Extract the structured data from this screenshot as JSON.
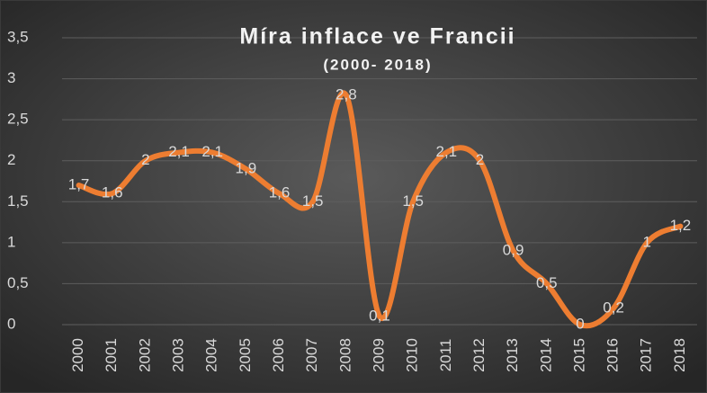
{
  "chart_data": {
    "type": "line",
    "title": "Míra inflace ve Francii",
    "subtitle": "(2000- 2018)",
    "categories": [
      "2000",
      "2001",
      "2002",
      "2003",
      "2004",
      "2005",
      "2006",
      "2007",
      "2008",
      "2009",
      "2010",
      "2011",
      "2012",
      "2013",
      "2014",
      "2015",
      "2016",
      "2017",
      "2018"
    ],
    "values": [
      1.7,
      1.6,
      2,
      2.1,
      2.1,
      1.9,
      1.6,
      1.5,
      2.8,
      0.1,
      1.5,
      2.1,
      2,
      0.9,
      0.5,
      0,
      0.2,
      1,
      1.2
    ],
    "value_labels": [
      "1,7",
      "1,6",
      "2",
      "2,1",
      "2,1",
      "1,9",
      "1,6",
      "1,5",
      "2,8",
      "0,1",
      "1,5",
      "2,1",
      "2",
      "0,9",
      "0,5",
      "0",
      "0,2",
      "1",
      "1,2"
    ],
    "color": "#ed7d31",
    "ylim": [
      0,
      3.5
    ],
    "yticks": [
      0,
      {
        "value": 0.5,
        "label": "0,5"
      },
      1,
      {
        "value": 1.5,
        "label": "1,5"
      },
      2,
      {
        "value": 2.5,
        "label": "2,5"
      },
      3,
      {
        "value": 3.5,
        "label": "3,5"
      }
    ],
    "grid": true
  }
}
